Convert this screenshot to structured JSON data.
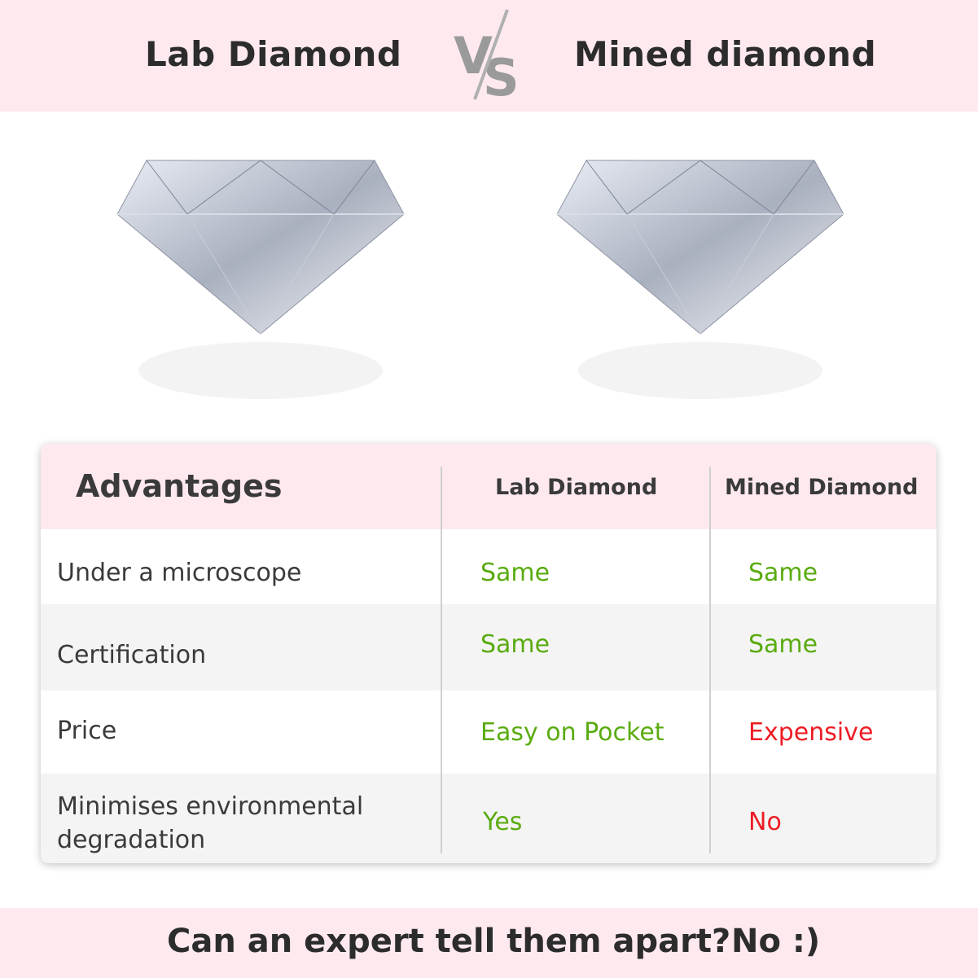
{
  "header": {
    "left_title": "Lab Diamond",
    "vs_logo": "VS",
    "right_title": "Mined diamond"
  },
  "images": [
    {
      "name": "lab-diamond-image"
    },
    {
      "name": "mined-diamond-image"
    }
  ],
  "table": {
    "headers": [
      "Advantages",
      "Lab Diamond",
      "Mined Diamond"
    ],
    "rows": [
      {
        "label": "Under a microscope",
        "lab": "Same",
        "mined": "Same"
      },
      {
        "label": "Certification",
        "lab": "Same",
        "mined": "Same"
      },
      {
        "label": "Price",
        "lab": "Easy on Pocket",
        "mined": "Expensive"
      },
      {
        "label": "Minimises environmental degradation",
        "lab": "Yes",
        "mined": "No"
      }
    ]
  },
  "footer": {
    "question": "Can an expert tell them apart?",
    "answer": "No :)"
  },
  "colors": {
    "band": "#fde9ee",
    "positive": "#5aab10",
    "negative": "#ee1c25",
    "alt_row": "#f4f4f4"
  }
}
